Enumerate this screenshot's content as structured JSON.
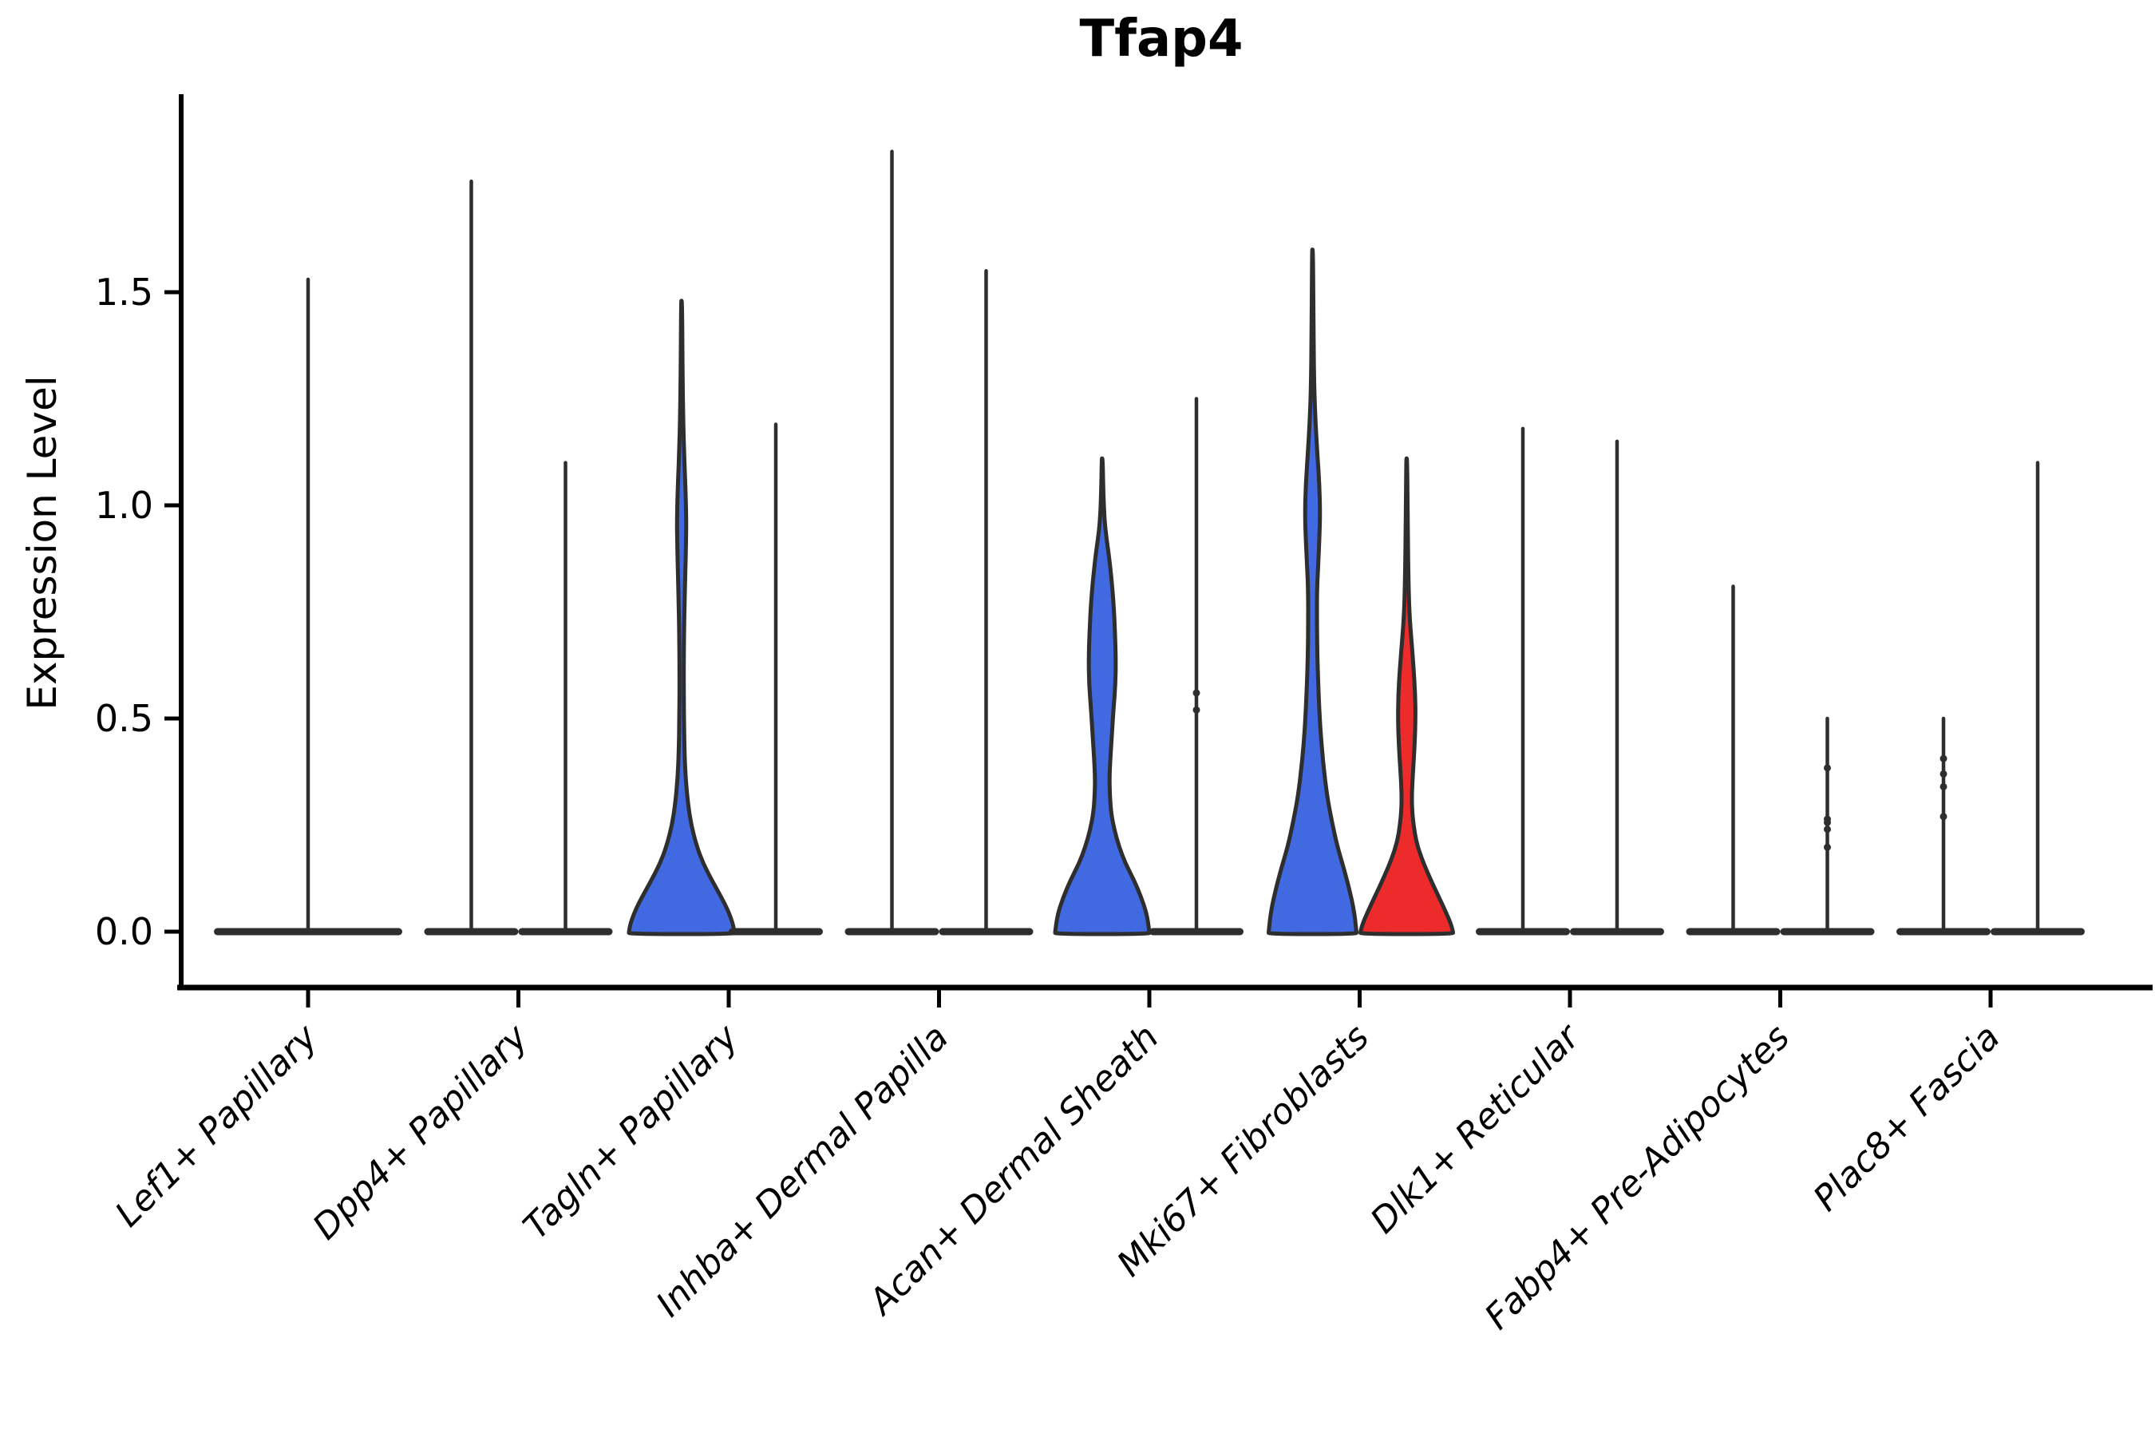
{
  "chart_data": {
    "type": "violin",
    "title": "Tfap4",
    "xlabel": "",
    "ylabel": "Expression Level",
    "ytick_labels": [
      "0.0",
      "0.5",
      "1.0",
      "1.5"
    ],
    "ytick_values": [
      0.0,
      0.5,
      1.0,
      1.5
    ],
    "ylim": [
      -0.13,
      1.96
    ],
    "grid": false,
    "legend": "none",
    "categories": [
      "Lef1+ Papillary",
      "Dpp4+ Papillary",
      "Tagln+ Papillary",
      "Inhba+ Dermal Papilla",
      "Acan+ Dermal Sheath",
      "Mki67+ Fibroblasts",
      "Dlk1+ Reticular",
      "Fabp4+ Pre-Adipocytes",
      "Plac8+ Fascia"
    ],
    "colors": {
      "outline": "#2e2e2e",
      "blue_fill": "#4169E1",
      "red_fill": "#ED2B2B",
      "axis": "#000000"
    },
    "description": "Split violin plot; two violins per cluster. Most violins collapse to a flat base at 0 with a thin spike to the max expression value.",
    "violins": [
      {
        "category": "Lef1+ Papillary",
        "ci": 0,
        "pos": "center",
        "shape": "spike",
        "max": 1.53,
        "pancake_halfwidth": 118,
        "fill": null,
        "dots": []
      },
      {
        "category": "Dpp4+ Papillary",
        "ci": 1,
        "pos": "left",
        "shape": "spike",
        "max": 1.76,
        "pancake_halfwidth": 59,
        "fill": null,
        "dots": []
      },
      {
        "category": "Dpp4+ Papillary",
        "ci": 1,
        "pos": "right",
        "shape": "spike",
        "max": 1.1,
        "pancake_halfwidth": 59,
        "fill": null,
        "dots": []
      },
      {
        "category": "Tagln+ Papillary",
        "ci": 2,
        "pos": "left",
        "shape": "body",
        "max": 1.48,
        "pancake_halfwidth": 66,
        "fill": "#4169E1",
        "profile": [
          [
            1.48,
            0.6
          ],
          [
            1.3,
            1.2
          ],
          [
            1.18,
            2.2
          ],
          [
            1.1,
            3.5
          ],
          [
            1.02,
            5.2
          ],
          [
            0.96,
            5.9
          ],
          [
            0.9,
            5.4
          ],
          [
            0.84,
            4.6
          ],
          [
            0.78,
            3.8
          ],
          [
            0.7,
            3.0
          ],
          [
            0.6,
            2.6
          ],
          [
            0.5,
            2.9
          ],
          [
            0.42,
            3.6
          ],
          [
            0.36,
            5.0
          ],
          [
            0.3,
            8.0
          ],
          [
            0.25,
            12
          ],
          [
            0.2,
            19
          ],
          [
            0.16,
            27
          ],
          [
            0.12,
            38
          ],
          [
            0.08,
            50
          ],
          [
            0.05,
            58
          ],
          [
            0.02,
            64
          ],
          [
            0.0,
            66
          ]
        ],
        "dots": []
      },
      {
        "category": "Tagln+ Papillary",
        "ci": 2,
        "pos": "right",
        "shape": "spike",
        "max": 1.19,
        "pancake_halfwidth": 59,
        "fill": null,
        "dots": []
      },
      {
        "category": "Inhba+ Dermal Papilla",
        "ci": 3,
        "pos": "left",
        "shape": "spike",
        "max": 1.83,
        "pancake_halfwidth": 59,
        "fill": null,
        "dots": []
      },
      {
        "category": "Inhba+ Dermal Papilla",
        "ci": 3,
        "pos": "right",
        "shape": "spike",
        "max": 1.55,
        "pancake_halfwidth": 59,
        "fill": null,
        "dots": []
      },
      {
        "category": "Acan+ Dermal Sheath",
        "ci": 4,
        "pos": "left",
        "shape": "body",
        "max": 1.11,
        "pancake_halfwidth": 59,
        "fill": "#4169E1",
        "profile": [
          [
            1.11,
            0.6
          ],
          [
            1.02,
            1.5
          ],
          [
            0.96,
            3.0
          ],
          [
            0.92,
            5.5
          ],
          [
            0.88,
            8.5
          ],
          [
            0.82,
            12
          ],
          [
            0.76,
            14.5
          ],
          [
            0.7,
            16
          ],
          [
            0.64,
            17
          ],
          [
            0.58,
            16.5
          ],
          [
            0.52,
            14
          ],
          [
            0.46,
            12
          ],
          [
            0.4,
            10
          ],
          [
            0.36,
            9
          ],
          [
            0.32,
            9.5
          ],
          [
            0.28,
            11
          ],
          [
            0.24,
            15
          ],
          [
            0.2,
            21
          ],
          [
            0.16,
            29
          ],
          [
            0.12,
            40
          ],
          [
            0.08,
            49
          ],
          [
            0.04,
            56
          ],
          [
            0.0,
            59
          ]
        ],
        "dots": []
      },
      {
        "category": "Acan+ Dermal Sheath",
        "ci": 4,
        "pos": "right",
        "shape": "spike",
        "max": 1.25,
        "pancake_halfwidth": 59,
        "fill": null,
        "dots": [
          0.56,
          0.52
        ]
      },
      {
        "category": "Mki67+ Fibroblasts",
        "ci": 5,
        "pos": "left",
        "shape": "body",
        "max": 1.6,
        "pancake_halfwidth": 55,
        "fill": "#4169E1",
        "profile": [
          [
            1.6,
            0.6
          ],
          [
            1.4,
            1.2
          ],
          [
            1.28,
            2.0
          ],
          [
            1.2,
            3.5
          ],
          [
            1.12,
            6.0
          ],
          [
            1.05,
            8.5
          ],
          [
            0.98,
            9.5
          ],
          [
            0.92,
            8.5
          ],
          [
            0.86,
            7.0
          ],
          [
            0.8,
            5.5
          ],
          [
            0.72,
            5.5
          ],
          [
            0.64,
            6.0
          ],
          [
            0.56,
            7.5
          ],
          [
            0.48,
            9.5
          ],
          [
            0.4,
            13
          ],
          [
            0.32,
            18
          ],
          [
            0.26,
            24
          ],
          [
            0.2,
            31
          ],
          [
            0.15,
            39
          ],
          [
            0.1,
            46
          ],
          [
            0.05,
            52
          ],
          [
            0.0,
            55
          ]
        ],
        "dots": []
      },
      {
        "category": "Mki67+ Fibroblasts",
        "ci": 5,
        "pos": "right",
        "shape": "body",
        "max": 1.11,
        "pancake_halfwidth": 58,
        "fill": "#ED2B2B",
        "profile": [
          [
            1.11,
            0.6
          ],
          [
            0.95,
            1.2
          ],
          [
            0.82,
            2.2
          ],
          [
            0.74,
            3.5
          ],
          [
            0.68,
            6.0
          ],
          [
            0.62,
            8.5
          ],
          [
            0.56,
            10.5
          ],
          [
            0.5,
            11
          ],
          [
            0.44,
            10
          ],
          [
            0.38,
            8
          ],
          [
            0.33,
            6.5
          ],
          [
            0.29,
            6.5
          ],
          [
            0.25,
            8.5
          ],
          [
            0.21,
            12
          ],
          [
            0.17,
            19
          ],
          [
            0.13,
            28
          ],
          [
            0.09,
            38
          ],
          [
            0.05,
            48
          ],
          [
            0.02,
            55
          ],
          [
            0.0,
            58
          ]
        ],
        "dots": []
      },
      {
        "category": "Dlk1+ Reticular",
        "ci": 6,
        "pos": "left",
        "shape": "spike",
        "max": 1.18,
        "pancake_halfwidth": 59,
        "fill": null,
        "dots": []
      },
      {
        "category": "Dlk1+ Reticular",
        "ci": 6,
        "pos": "right",
        "shape": "spike",
        "max": 1.15,
        "pancake_halfwidth": 59,
        "fill": null,
        "dots": []
      },
      {
        "category": "Fabp4+ Pre-Adipocytes",
        "ci": 7,
        "pos": "left",
        "shape": "spike",
        "max": 0.81,
        "pancake_halfwidth": 59,
        "fill": null,
        "dots": []
      },
      {
        "category": "Fabp4+ Pre-Adipocytes",
        "ci": 7,
        "pos": "right",
        "shape": "spike",
        "max": 0.5,
        "pancake_halfwidth": 59,
        "fill": null,
        "dots": [
          0.384,
          0.264,
          0.256,
          0.24,
          0.198
        ]
      },
      {
        "category": "Plac8+ Fascia",
        "ci": 8,
        "pos": "left",
        "shape": "spike",
        "max": 0.5,
        "pancake_halfwidth": 59,
        "fill": null,
        "dots": [
          0.406,
          0.37,
          0.34,
          0.27
        ]
      },
      {
        "category": "Plac8+ Fascia",
        "ci": 8,
        "pos": "right",
        "shape": "spike",
        "max": 1.1,
        "pancake_halfwidth": 59,
        "fill": null,
        "dots": []
      }
    ]
  }
}
